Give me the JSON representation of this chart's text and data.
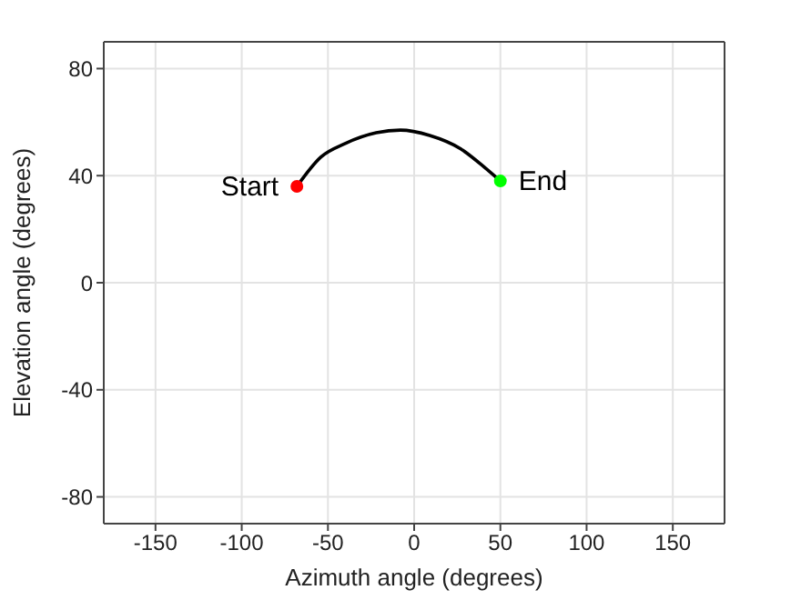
{
  "chart_data": {
    "type": "line",
    "xlabel": "Azimuth angle (degrees)",
    "ylabel": "Elevation angle (degrees)",
    "xlim": [
      -180,
      180
    ],
    "xticks": [
      -150,
      -100,
      -50,
      0,
      50,
      100,
      150
    ],
    "ylim": [
      -90,
      90
    ],
    "yticks": [
      -80,
      -40,
      0,
      40,
      80
    ],
    "grid": true,
    "series": [
      {
        "color": "#000000",
        "x": [
          -68,
          -54,
          -40,
          -22,
          -8,
          9,
          27,
          41,
          50
        ],
        "values": [
          36,
          47,
          52,
          56,
          57,
          55,
          50,
          43,
          38
        ]
      },
      {
        "type": "scatter",
        "name": "Start",
        "color": "#ff0000",
        "x": [
          -68
        ],
        "values": [
          36
        ]
      },
      {
        "type": "scatter",
        "name": "End",
        "color": "#00ff00",
        "x": [
          50
        ],
        "values": [
          38
        ]
      }
    ]
  }
}
